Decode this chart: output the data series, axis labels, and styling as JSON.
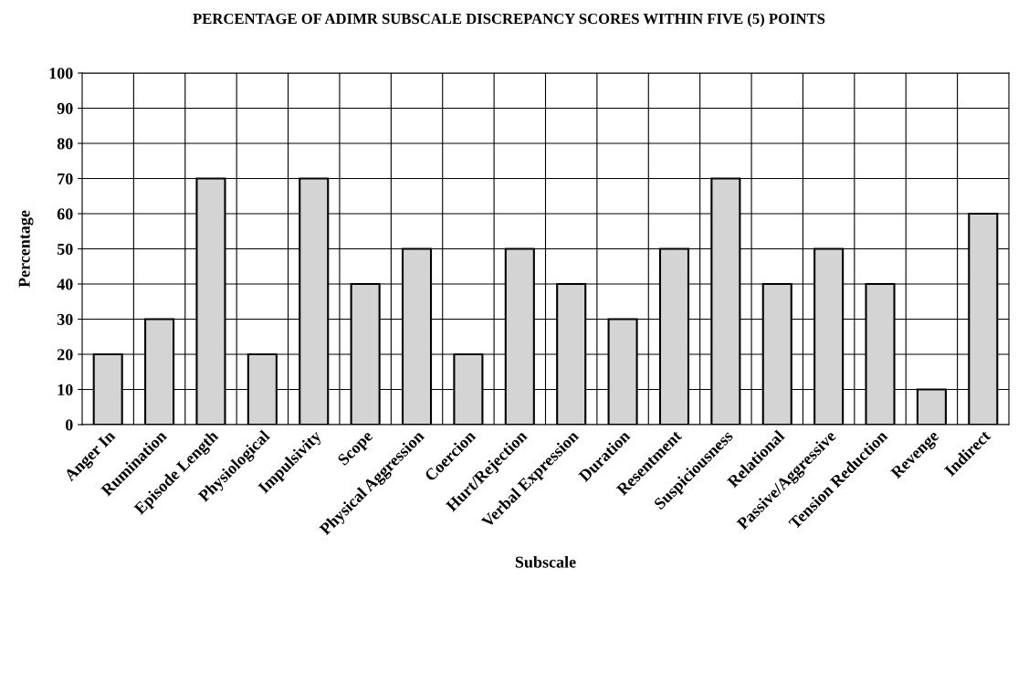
{
  "chart_data": {
    "type": "bar",
    "title": "PERCENTAGE OF ADIMR SUBSCALE DISCREPANCY SCORES WITHIN FIVE (5) POINTS",
    "xlabel": "Subscale",
    "ylabel": "Percentage",
    "categories": [
      "Anger In",
      "Rumination",
      "Episode Length",
      "Physiological",
      "Impulsivity",
      "Scope",
      "Physical Aggression",
      "Coercion",
      "Hurt/Rejection",
      "Verbal Expression",
      "Duration",
      "Resentment",
      "Suspiciousness",
      "Relational",
      "Passive/Aggressive",
      "Tension Reduction",
      "Revenge",
      "Indirect"
    ],
    "values": [
      20,
      30,
      70,
      20,
      70,
      40,
      50,
      20,
      50,
      40,
      30,
      50,
      70,
      40,
      50,
      40,
      10,
      60
    ],
    "color": "#d4d4d4",
    "ylim": [
      0,
      100
    ],
    "yticks": [
      0,
      10,
      20,
      30,
      40,
      50,
      60,
      70,
      80,
      90,
      100
    ],
    "grid": true,
    "legend": false
  }
}
